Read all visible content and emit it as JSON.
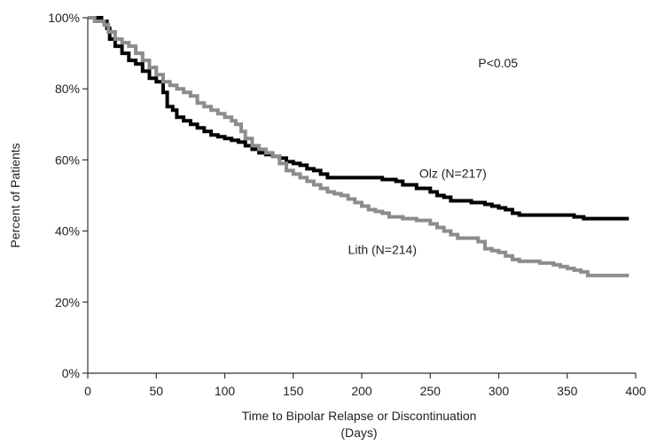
{
  "chart_data": {
    "type": "line",
    "title": "",
    "xlabel": "Time to Bipolar Relapse or Discontinuation",
    "xlabel_line2": "(Days)",
    "ylabel": "Percent of Patients",
    "xlim": [
      0,
      400
    ],
    "ylim": [
      0,
      100
    ],
    "x_ticks": [
      0,
      50,
      100,
      150,
      200,
      250,
      300,
      350,
      400
    ],
    "y_ticks": [
      0,
      20,
      40,
      60,
      80,
      100
    ],
    "y_tick_labels": [
      "0%",
      "20%",
      "40%",
      "60%",
      "80%",
      "100%"
    ],
    "grid": false,
    "legend": "none",
    "annotations": [
      {
        "text": "P<0.05",
        "x": 285,
        "y": 86
      },
      {
        "text": "Olz (N=217)",
        "x": 242,
        "y": 55
      },
      {
        "text": "Lith (N=214)",
        "x": 190,
        "y": 33.5
      }
    ],
    "series": [
      {
        "name": "Olz (N=217)",
        "color": "#000000",
        "step": true,
        "points": [
          [
            0,
            100
          ],
          [
            10,
            99
          ],
          [
            14,
            97
          ],
          [
            16,
            94
          ],
          [
            20,
            92
          ],
          [
            25,
            90
          ],
          [
            30,
            88
          ],
          [
            35,
            87
          ],
          [
            40,
            85
          ],
          [
            45,
            83
          ],
          [
            50,
            82
          ],
          [
            55,
            79
          ],
          [
            58,
            75
          ],
          [
            62,
            74
          ],
          [
            65,
            72
          ],
          [
            70,
            71
          ],
          [
            75,
            70
          ],
          [
            80,
            69
          ],
          [
            85,
            68
          ],
          [
            90,
            67
          ],
          [
            95,
            66.5
          ],
          [
            100,
            66
          ],
          [
            105,
            65.5
          ],
          [
            110,
            65
          ],
          [
            115,
            64
          ],
          [
            120,
            63
          ],
          [
            125,
            62
          ],
          [
            130,
            61.5
          ],
          [
            135,
            61
          ],
          [
            140,
            60.5
          ],
          [
            145,
            59.5
          ],
          [
            150,
            59
          ],
          [
            155,
            58.5
          ],
          [
            160,
            57.5
          ],
          [
            165,
            57
          ],
          [
            170,
            56
          ],
          [
            175,
            55
          ],
          [
            180,
            55
          ],
          [
            200,
            55
          ],
          [
            215,
            54.5
          ],
          [
            225,
            54
          ],
          [
            230,
            53
          ],
          [
            240,
            52
          ],
          [
            250,
            51
          ],
          [
            255,
            50
          ],
          [
            260,
            49.5
          ],
          [
            265,
            48.5
          ],
          [
            280,
            48
          ],
          [
            290,
            47.5
          ],
          [
            295,
            47
          ],
          [
            300,
            46.5
          ],
          [
            305,
            46
          ],
          [
            310,
            45
          ],
          [
            315,
            44.5
          ],
          [
            330,
            44.5
          ],
          [
            345,
            44.5
          ],
          [
            355,
            44
          ],
          [
            362,
            43.5
          ],
          [
            395,
            43.5
          ]
        ]
      },
      {
        "name": "Lith (N=214)",
        "color": "#8c8c8c",
        "step": true,
        "points": [
          [
            0,
            100
          ],
          [
            5,
            99
          ],
          [
            12,
            98
          ],
          [
            15,
            96
          ],
          [
            20,
            94
          ],
          [
            25,
            93
          ],
          [
            30,
            92
          ],
          [
            35,
            90
          ],
          [
            40,
            88
          ],
          [
            45,
            86
          ],
          [
            50,
            84
          ],
          [
            55,
            82
          ],
          [
            60,
            81
          ],
          [
            65,
            80
          ],
          [
            70,
            79
          ],
          [
            75,
            78
          ],
          [
            80,
            76
          ],
          [
            85,
            75
          ],
          [
            90,
            74
          ],
          [
            95,
            73
          ],
          [
            100,
            72
          ],
          [
            105,
            71
          ],
          [
            108,
            70
          ],
          [
            112,
            68
          ],
          [
            115,
            66
          ],
          [
            120,
            64
          ],
          [
            125,
            63
          ],
          [
            130,
            62
          ],
          [
            135,
            61
          ],
          [
            140,
            59
          ],
          [
            145,
            57
          ],
          [
            150,
            56
          ],
          [
            155,
            55
          ],
          [
            160,
            54
          ],
          [
            165,
            53
          ],
          [
            170,
            52
          ],
          [
            175,
            51
          ],
          [
            180,
            50.5
          ],
          [
            185,
            50
          ],
          [
            190,
            49
          ],
          [
            195,
            48
          ],
          [
            200,
            47
          ],
          [
            205,
            46
          ],
          [
            210,
            45.5
          ],
          [
            215,
            45
          ],
          [
            220,
            44
          ],
          [
            230,
            43.5
          ],
          [
            240,
            43
          ],
          [
            250,
            42
          ],
          [
            255,
            41
          ],
          [
            260,
            40
          ],
          [
            265,
            39
          ],
          [
            270,
            38
          ],
          [
            280,
            38
          ],
          [
            285,
            37
          ],
          [
            290,
            35
          ],
          [
            295,
            34.5
          ],
          [
            300,
            34
          ],
          [
            305,
            33
          ],
          [
            310,
            32
          ],
          [
            315,
            31.5
          ],
          [
            325,
            31.5
          ],
          [
            330,
            31
          ],
          [
            335,
            31
          ],
          [
            340,
            30.5
          ],
          [
            345,
            30
          ],
          [
            350,
            29.5
          ],
          [
            355,
            29
          ],
          [
            360,
            28.5
          ],
          [
            365,
            27.5
          ],
          [
            395,
            27.5
          ]
        ]
      }
    ]
  }
}
